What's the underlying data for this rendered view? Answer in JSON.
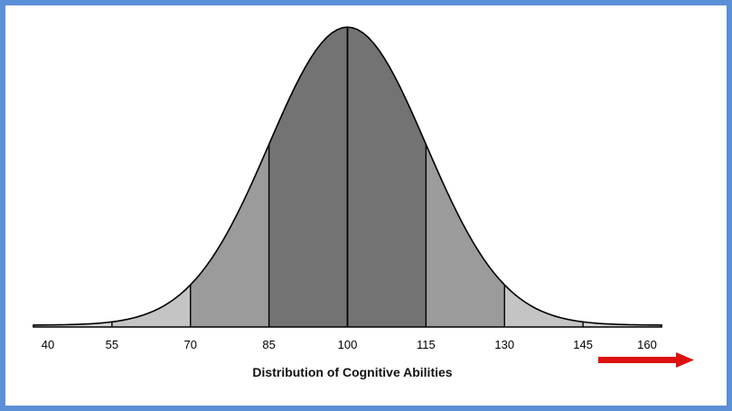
{
  "chart_data": {
    "type": "area",
    "title": "",
    "xlabel": "Distribution of Cognitive Abilities",
    "ylabel": "",
    "distribution": {
      "mean": 100,
      "sd": 15
    },
    "xlim": [
      40,
      160
    ],
    "x_ticks": [
      40,
      55,
      70,
      85,
      100,
      115,
      130,
      145,
      160
    ],
    "band_boundaries": [
      55,
      70,
      85,
      100,
      115,
      130,
      145
    ],
    "bands": [
      {
        "from": 40,
        "to": 55,
        "shade": "#d4d4d4"
      },
      {
        "from": 55,
        "to": 70,
        "shade": "#c4c4c4"
      },
      {
        "from": 70,
        "to": 85,
        "shade": "#9b9b9b"
      },
      {
        "from": 85,
        "to": 115,
        "shade": "#737373"
      },
      {
        "from": 115,
        "to": 130,
        "shade": "#9b9b9b"
      },
      {
        "from": 130,
        "to": 145,
        "shade": "#c4c4c4"
      },
      {
        "from": 145,
        "to": 160,
        "shade": "#d4d4d4"
      }
    ],
    "grid": false,
    "legend": "none",
    "annotation_arrow": {
      "direction": "right",
      "color": "#dd1111"
    }
  },
  "colors": {
    "frame_border": "#5b8fd6",
    "outline": "#000000"
  }
}
